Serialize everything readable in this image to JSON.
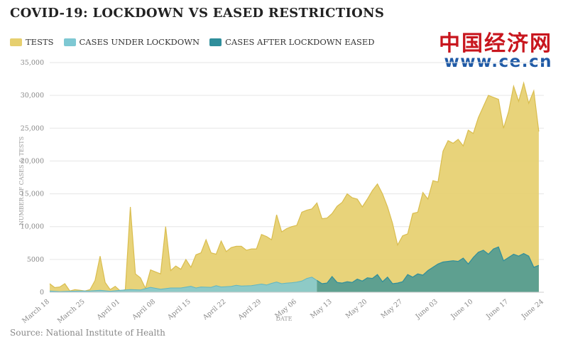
{
  "title": "COVID-19: LOCKDOWN VS EASED RESTRICTIONS",
  "legend": {
    "tests": "TESTS",
    "lockdown": "CASES UNDER LOCKDOWN",
    "eased": "CASES AFTER LOCKDOWN EASED"
  },
  "logo": {
    "chinese": "中国经济网",
    "url": "www.ce.cn"
  },
  "source": "Source: National Institute of Health",
  "colors": {
    "tests": "#e6cf6f",
    "tests_line": "#d9bd4f",
    "lockdown": "#7ec8d3",
    "eased": "#4f9a92",
    "grid": "#e6e6e6"
  },
  "chart_data": {
    "type": "area",
    "xlabel": "DATE",
    "ylabel": "NUMBER OF CASES & TESTS",
    "ylim": [
      0,
      35000
    ],
    "yticks": [
      0,
      5000,
      10000,
      15000,
      20000,
      25000,
      30000,
      35000
    ],
    "ytick_labels": [
      "0",
      "5000",
      "10,000",
      "15,000",
      "20,000",
      "25,000",
      "30,000",
      "35,000"
    ],
    "grid": true,
    "legend_position": "top-left",
    "x_start": "March 18",
    "x_end": "June 24",
    "xticks": [
      {
        "day": 0,
        "label": "March 18"
      },
      {
        "day": 7,
        "label": "March 25"
      },
      {
        "day": 14,
        "label": "April 01"
      },
      {
        "day": 21,
        "label": "April 08"
      },
      {
        "day": 28,
        "label": "April 15"
      },
      {
        "day": 35,
        "label": "April 22"
      },
      {
        "day": 42,
        "label": "April 29"
      },
      {
        "day": 49,
        "label": "May 06"
      },
      {
        "day": 56,
        "label": "May 13"
      },
      {
        "day": 63,
        "label": "May 20"
      },
      {
        "day": 70,
        "label": "May 27"
      },
      {
        "day": 77,
        "label": "June 03"
      },
      {
        "day": 84,
        "label": "June 10"
      },
      {
        "day": 91,
        "label": "June 17"
      },
      {
        "day": 98,
        "label": "June 24"
      }
    ],
    "series": [
      {
        "name": "TESTS",
        "points": [
          [
            0,
            1300
          ],
          [
            1,
            700
          ],
          [
            2,
            800
          ],
          [
            3,
            1300
          ],
          [
            4,
            200
          ],
          [
            5,
            400
          ],
          [
            6,
            300
          ],
          [
            7,
            200
          ],
          [
            8,
            400
          ],
          [
            9,
            1800
          ],
          [
            10,
            5500
          ],
          [
            11,
            1500
          ],
          [
            12,
            400
          ],
          [
            13,
            900
          ],
          [
            14,
            200
          ],
          [
            15,
            400
          ],
          [
            16,
            13000
          ],
          [
            17,
            2800
          ],
          [
            18,
            2200
          ],
          [
            19,
            600
          ],
          [
            20,
            3400
          ],
          [
            21,
            3100
          ],
          [
            22,
            2800
          ],
          [
            23,
            10000
          ],
          [
            24,
            3300
          ],
          [
            25,
            4000
          ],
          [
            26,
            3500
          ],
          [
            27,
            5000
          ],
          [
            28,
            3800
          ],
          [
            29,
            5700
          ],
          [
            30,
            6000
          ],
          [
            31,
            8000
          ],
          [
            32,
            6000
          ],
          [
            33,
            5800
          ],
          [
            34,
            7800
          ],
          [
            35,
            6200
          ],
          [
            36,
            6800
          ],
          [
            37,
            7000
          ],
          [
            38,
            7000
          ],
          [
            39,
            6400
          ],
          [
            40,
            6600
          ],
          [
            41,
            6600
          ],
          [
            42,
            8800
          ],
          [
            43,
            8500
          ],
          [
            44,
            8000
          ],
          [
            45,
            11800
          ],
          [
            46,
            9200
          ],
          [
            47,
            9700
          ],
          [
            48,
            10000
          ],
          [
            49,
            10200
          ],
          [
            50,
            12200
          ],
          [
            51,
            12500
          ],
          [
            52,
            12700
          ],
          [
            53,
            13600
          ],
          [
            54,
            11200
          ],
          [
            55,
            11300
          ],
          [
            56,
            12000
          ],
          [
            57,
            13100
          ],
          [
            58,
            13700
          ],
          [
            59,
            15000
          ],
          [
            60,
            14400
          ],
          [
            61,
            14200
          ],
          [
            62,
            13000
          ],
          [
            63,
            14200
          ],
          [
            64,
            15500
          ],
          [
            65,
            16500
          ],
          [
            66,
            15000
          ],
          [
            67,
            13000
          ],
          [
            68,
            10500
          ],
          [
            69,
            7200
          ],
          [
            70,
            8600
          ],
          [
            71,
            8900
          ],
          [
            72,
            12000
          ],
          [
            73,
            12200
          ],
          [
            74,
            15200
          ],
          [
            75,
            14200
          ],
          [
            76,
            17000
          ],
          [
            77,
            16800
          ],
          [
            78,
            21500
          ],
          [
            79,
            23100
          ],
          [
            80,
            22700
          ],
          [
            81,
            23300
          ],
          [
            82,
            22300
          ],
          [
            83,
            24700
          ],
          [
            84,
            24200
          ],
          [
            85,
            26600
          ],
          [
            86,
            28300
          ],
          [
            87,
            30000
          ],
          [
            88,
            29700
          ],
          [
            89,
            29400
          ],
          [
            90,
            25000
          ],
          [
            91,
            27500
          ],
          [
            92,
            31400
          ],
          [
            93,
            29100
          ],
          [
            94,
            31900
          ],
          [
            95,
            28800
          ],
          [
            96,
            30700
          ],
          [
            97,
            24500
          ]
        ]
      },
      {
        "name": "CASES UNDER LOCKDOWN",
        "points": [
          [
            0,
            200
          ],
          [
            2,
            100
          ],
          [
            4,
            150
          ],
          [
            6,
            200
          ],
          [
            8,
            200
          ],
          [
            10,
            300
          ],
          [
            12,
            150
          ],
          [
            14,
            300
          ],
          [
            16,
            400
          ],
          [
            18,
            350
          ],
          [
            19,
            550
          ],
          [
            20,
            750
          ],
          [
            22,
            450
          ],
          [
            24,
            650
          ],
          [
            26,
            650
          ],
          [
            28,
            900
          ],
          [
            29,
            650
          ],
          [
            30,
            800
          ],
          [
            32,
            750
          ],
          [
            33,
            1000
          ],
          [
            34,
            800
          ],
          [
            36,
            900
          ],
          [
            37,
            1050
          ],
          [
            38,
            950
          ],
          [
            40,
            1000
          ],
          [
            42,
            1250
          ],
          [
            43,
            1100
          ],
          [
            44,
            1350
          ],
          [
            45,
            1550
          ],
          [
            46,
            1300
          ],
          [
            47,
            1400
          ],
          [
            48,
            1450
          ],
          [
            49,
            1550
          ],
          [
            50,
            1700
          ],
          [
            51,
            2100
          ],
          [
            52,
            2300
          ],
          [
            53,
            1800
          ]
        ]
      },
      {
        "name": "CASES AFTER LOCKDOWN EASED",
        "points": [
          [
            53,
            1800
          ],
          [
            54,
            1300
          ],
          [
            55,
            1400
          ],
          [
            56,
            2400
          ],
          [
            57,
            1500
          ],
          [
            58,
            1400
          ],
          [
            59,
            1600
          ],
          [
            60,
            1500
          ],
          [
            61,
            2000
          ],
          [
            62,
            1700
          ],
          [
            63,
            2200
          ],
          [
            64,
            2100
          ],
          [
            65,
            2700
          ],
          [
            66,
            1600
          ],
          [
            67,
            2300
          ],
          [
            68,
            1300
          ],
          [
            69,
            1400
          ],
          [
            70,
            1600
          ],
          [
            71,
            2700
          ],
          [
            72,
            2300
          ],
          [
            73,
            2800
          ],
          [
            74,
            2600
          ],
          [
            75,
            3300
          ],
          [
            76,
            3800
          ],
          [
            77,
            4300
          ],
          [
            78,
            4600
          ],
          [
            79,
            4700
          ],
          [
            80,
            4800
          ],
          [
            81,
            4700
          ],
          [
            82,
            5200
          ],
          [
            83,
            4300
          ],
          [
            84,
            5300
          ],
          [
            85,
            6100
          ],
          [
            86,
            6400
          ],
          [
            87,
            5800
          ],
          [
            88,
            6600
          ],
          [
            89,
            6900
          ],
          [
            90,
            4800
          ],
          [
            91,
            5300
          ],
          [
            92,
            5800
          ],
          [
            93,
            5500
          ],
          [
            94,
            5900
          ],
          [
            95,
            5500
          ],
          [
            96,
            3800
          ],
          [
            97,
            4100
          ]
        ]
      }
    ]
  }
}
